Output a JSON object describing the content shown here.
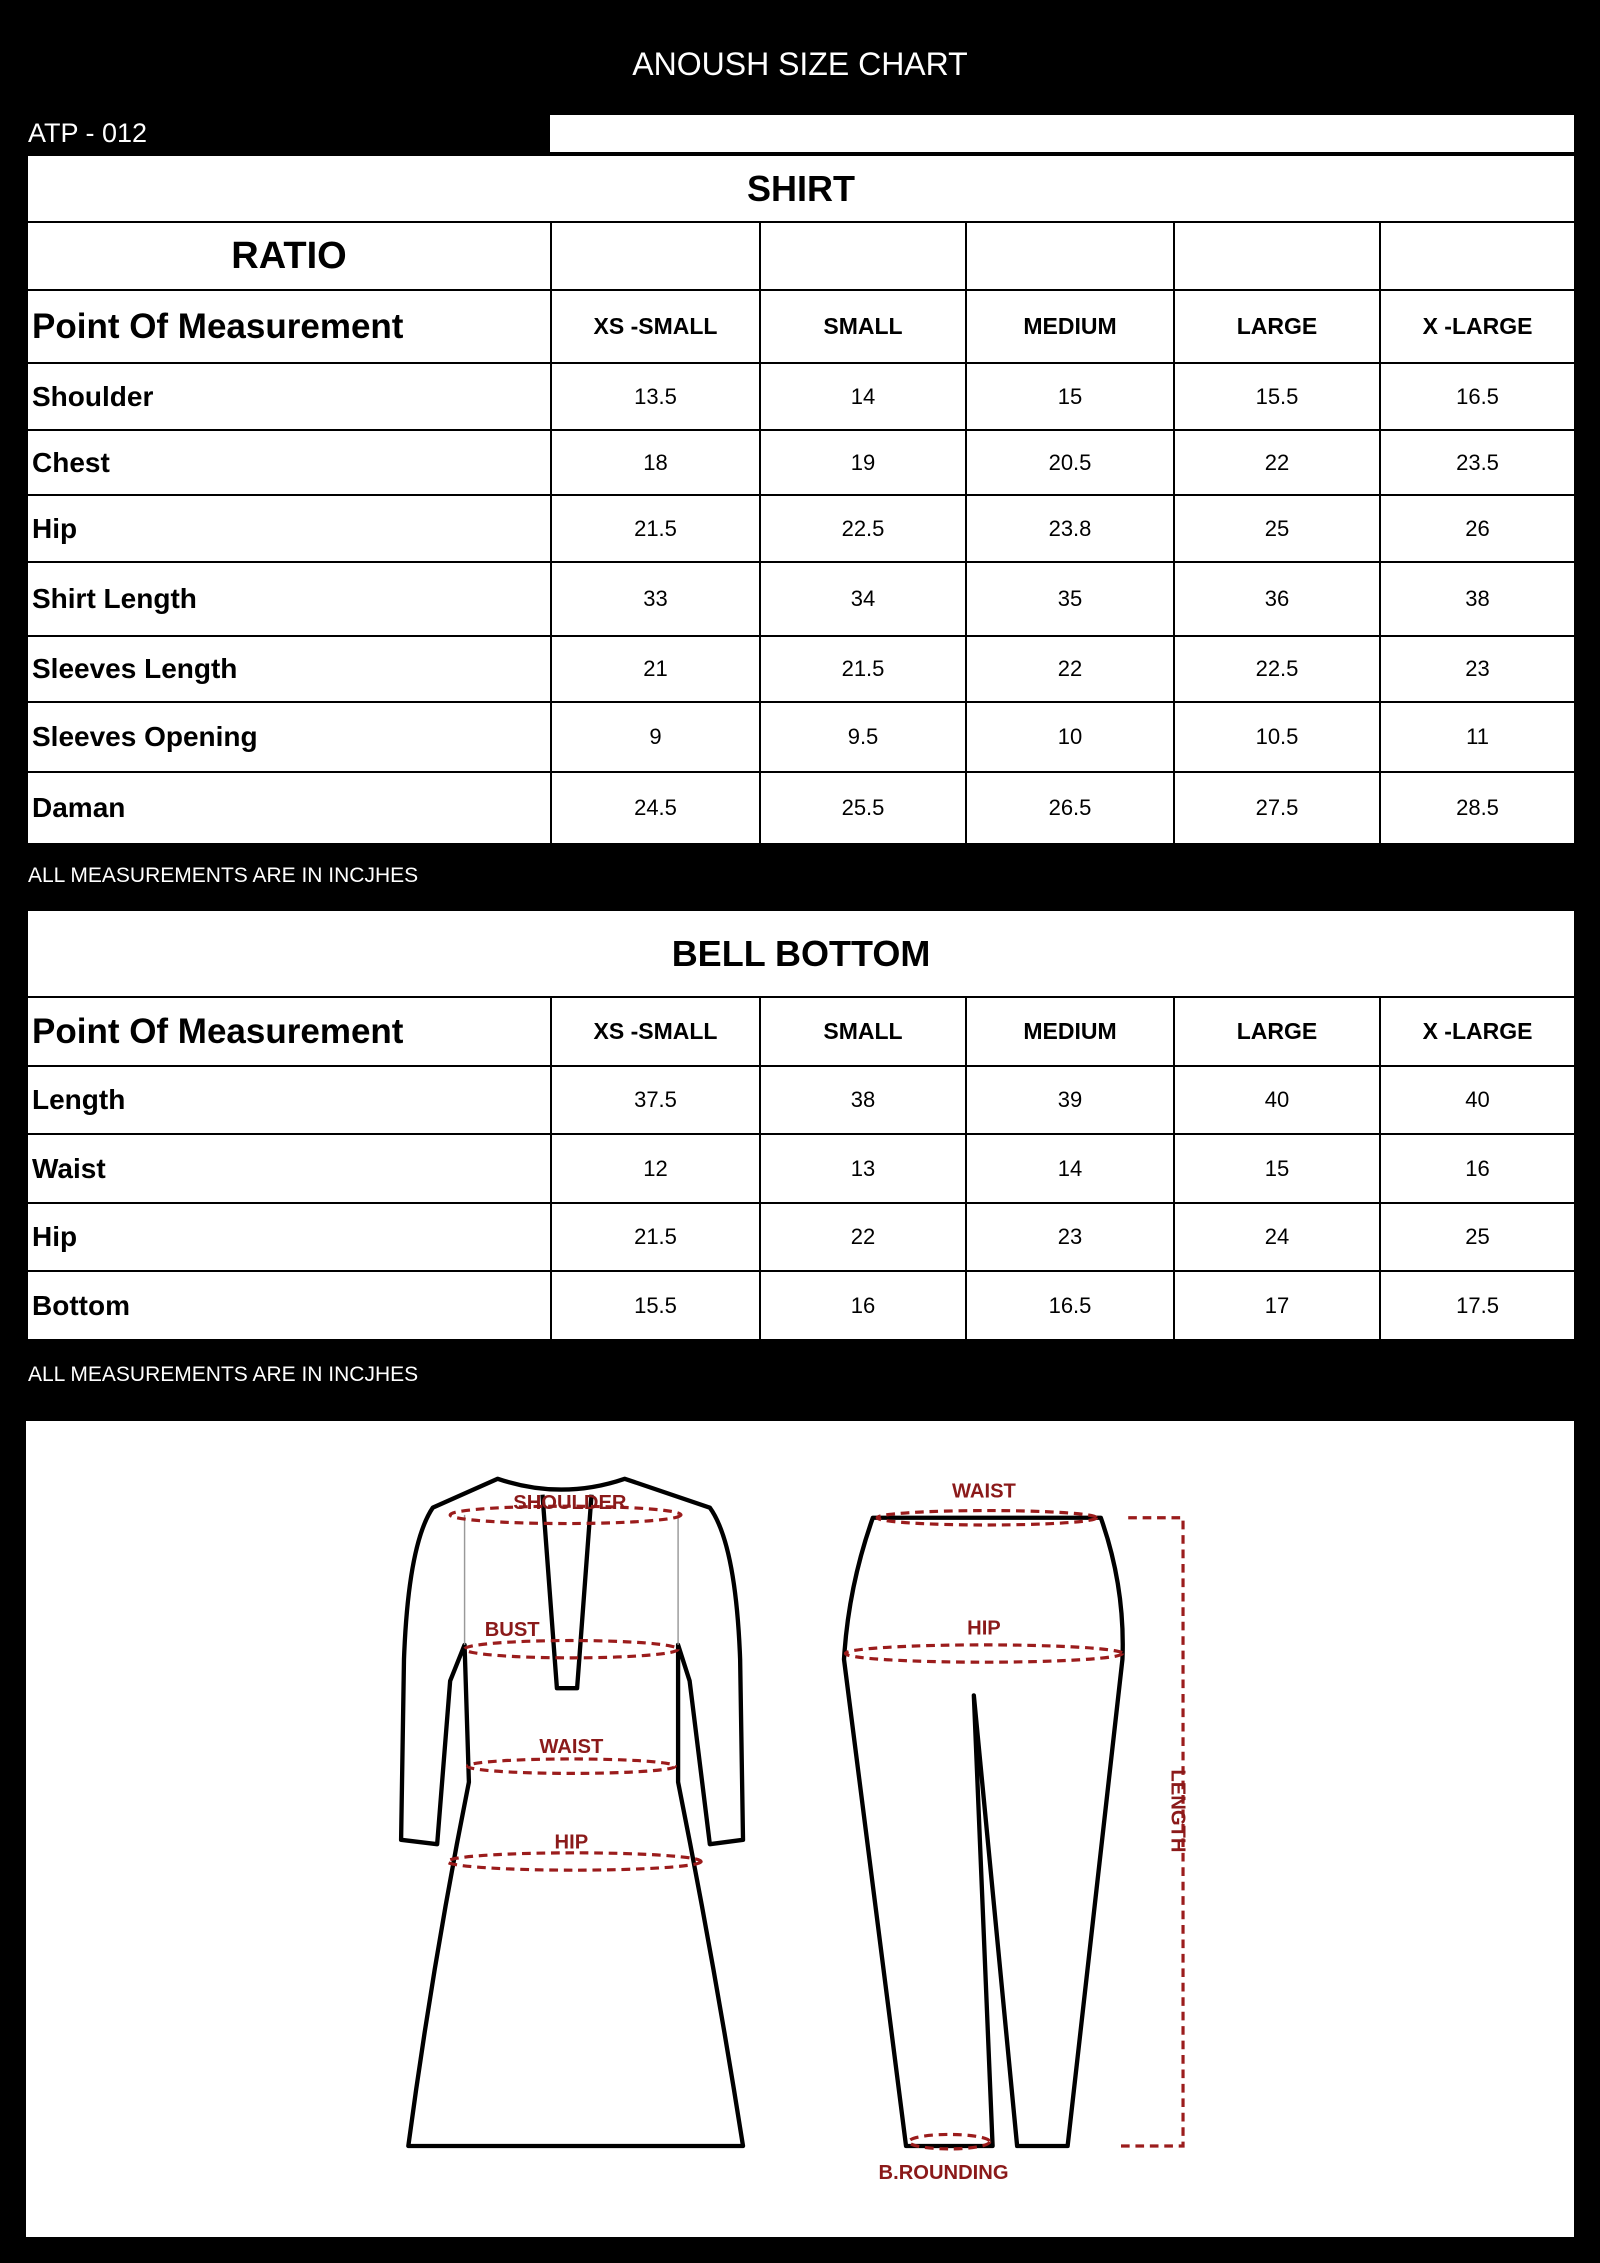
{
  "header": {
    "title": "ANOUSH SIZE CHART",
    "code": "ATP - 012"
  },
  "shirt": {
    "section_title": "SHIRT",
    "ratio_label": "RATIO",
    "pom_label": "Point Of Measurement",
    "sizes": [
      "XS -SMALL",
      "SMALL",
      "MEDIUM",
      "LARGE",
      "X -LARGE"
    ],
    "rows": [
      {
        "label": "Shoulder",
        "values": [
          "13.5",
          "14",
          "15",
          "15.5",
          "16.5"
        ]
      },
      {
        "label": "Chest",
        "values": [
          "18",
          "19",
          "20.5",
          "22",
          "23.5"
        ]
      },
      {
        "label": "Hip",
        "values": [
          "21.5",
          "22.5",
          "23.8",
          "25",
          "26"
        ]
      },
      {
        "label": "Shirt Length",
        "values": [
          "33",
          "34",
          "35",
          "36",
          "38"
        ]
      },
      {
        "label": "Sleeves Length",
        "values": [
          "21",
          "21.5",
          "22",
          "22.5",
          "23"
        ]
      },
      {
        "label": "Sleeves Opening",
        "values": [
          "9",
          "9.5",
          "10",
          "10.5",
          "11"
        ]
      },
      {
        "label": "Daman",
        "values": [
          "24.5",
          "25.5",
          "26.5",
          "27.5",
          "28.5"
        ]
      }
    ],
    "note": "ALL MEASUREMENTS ARE IN INCJHES"
  },
  "bell_bottom": {
    "section_title": "BELL BOTTOM",
    "pom_label": "Point Of Measurement",
    "sizes": [
      "XS -SMALL",
      "SMALL",
      "MEDIUM",
      "LARGE",
      "X -LARGE"
    ],
    "rows": [
      {
        "label": "Length",
        "values": [
          "37.5",
          "38",
          "39",
          "40",
          "40"
        ]
      },
      {
        "label": "Waist",
        "values": [
          "12",
          "13",
          "14",
          "15",
          "16"
        ]
      },
      {
        "label": "Hip",
        "values": [
          "21.5",
          "22",
          "23",
          "24",
          "25"
        ]
      },
      {
        "label": "Bottom",
        "values": [
          "15.5",
          "16",
          "16.5",
          "17",
          "17.5"
        ]
      }
    ],
    "note": "ALL MEASUREMENTS ARE IN INCJHES"
  },
  "diagram": {
    "shirt_labels": {
      "shoulder": "SHOULDER",
      "bust": "BUST",
      "waist": "WAIST",
      "hip": "HIP"
    },
    "pants_labels": {
      "waist": "WAIST",
      "hip": "HIP",
      "length": "LENGTH",
      "bottom": "B.ROUNDING"
    },
    "measure_color": "#9b1c1c"
  }
}
